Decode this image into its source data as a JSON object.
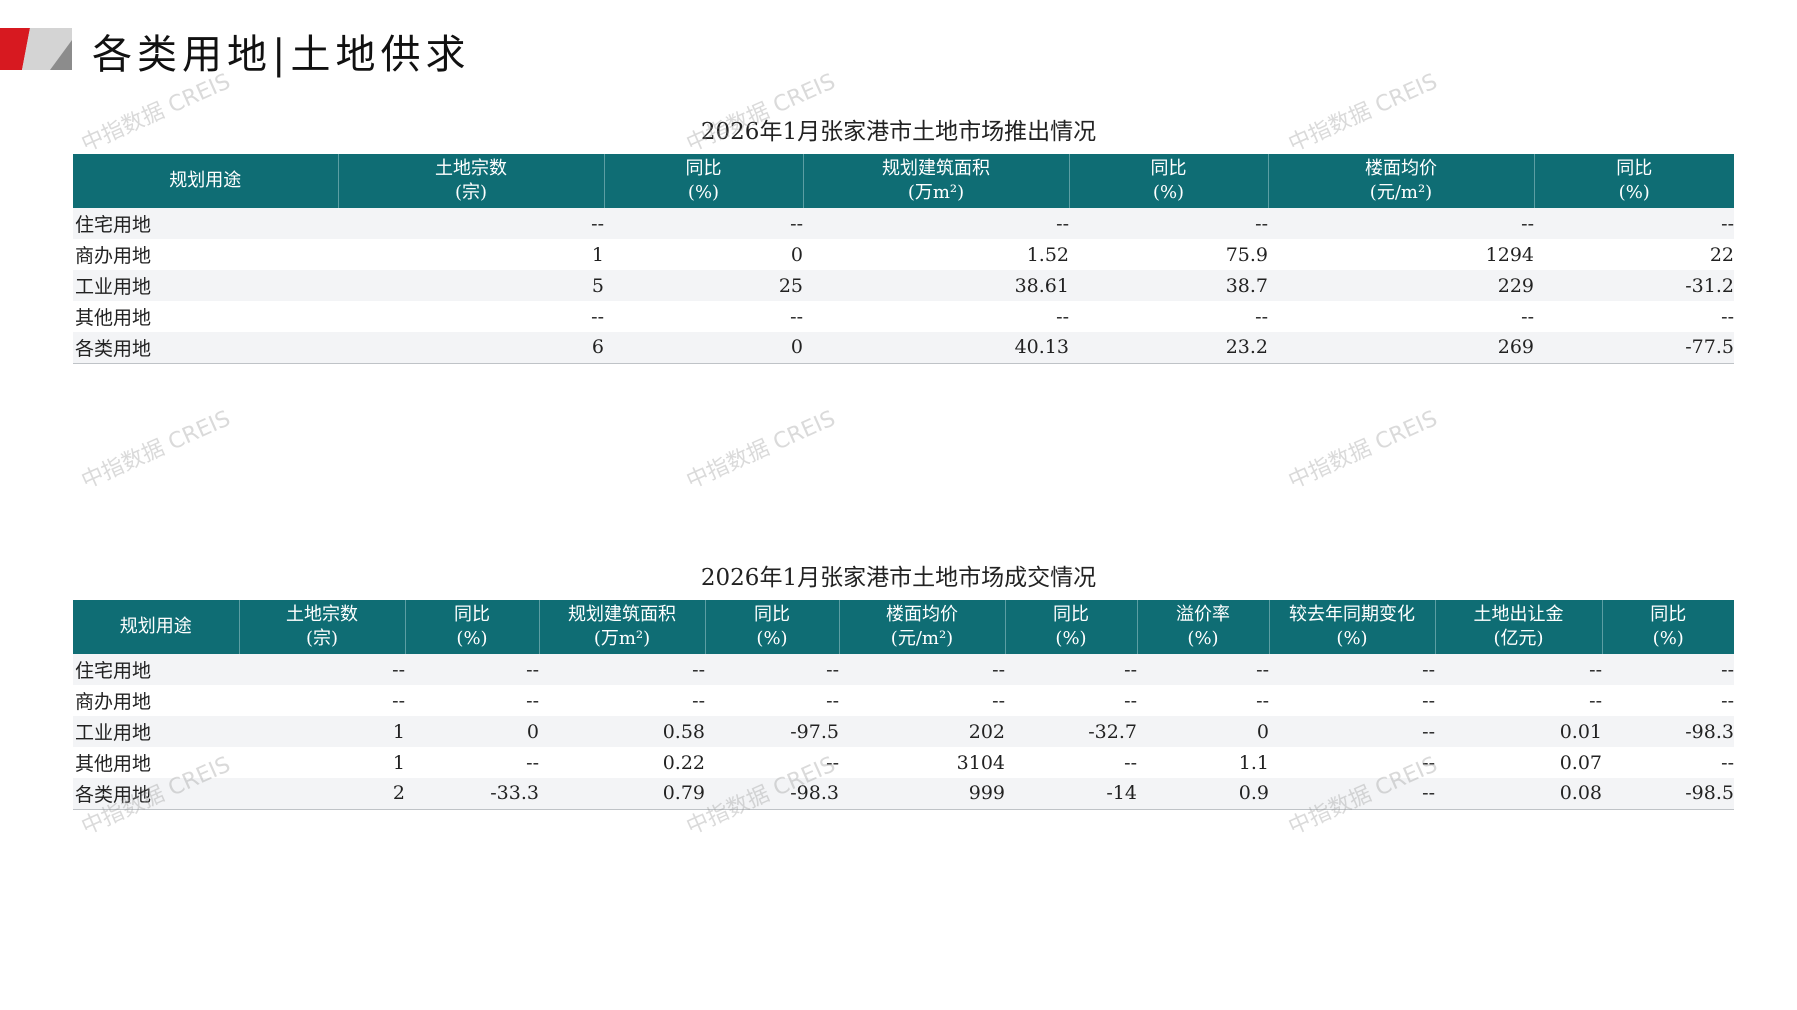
{
  "page_title": "各类用地|土地供求",
  "watermark": "中指数据 CREIS",
  "colors": {
    "header_bg": "#0f6d74",
    "accent_red": "#d71920"
  },
  "supply": {
    "title": "2026年1月张家港市土地市场推出情况",
    "headers": [
      [
        "规划用途",
        ""
      ],
      [
        "土地宗数",
        "(宗)"
      ],
      [
        "同比",
        "(%)"
      ],
      [
        "规划建筑面积",
        "(万m²)"
      ],
      [
        "同比",
        "(%)"
      ],
      [
        "楼面均价",
        "(元/m²)"
      ],
      [
        "同比",
        "(%)"
      ]
    ],
    "rows": [
      [
        "住宅用地",
        "--",
        "--",
        "--",
        "--",
        "--",
        "--"
      ],
      [
        "商办用地",
        "1",
        "0",
        "1.52",
        "75.9",
        "1294",
        "22"
      ],
      [
        "工业用地",
        "5",
        "25",
        "38.61",
        "38.7",
        "229",
        "-31.2"
      ],
      [
        "其他用地",
        "--",
        "--",
        "--",
        "--",
        "--",
        "--"
      ],
      [
        "各类用地",
        "6",
        "0",
        "40.13",
        "23.2",
        "269",
        "-77.5"
      ]
    ]
  },
  "deal": {
    "title": "2026年1月张家港市土地市场成交情况",
    "headers": [
      [
        "规划用途",
        ""
      ],
      [
        "土地宗数",
        "(宗)"
      ],
      [
        "同比",
        "(%)"
      ],
      [
        "规划建筑面积",
        "(万m²)"
      ],
      [
        "同比",
        "(%)"
      ],
      [
        "楼面均价",
        "(元/m²)"
      ],
      [
        "同比",
        "(%)"
      ],
      [
        "溢价率",
        "(%)"
      ],
      [
        "较去年同期变化",
        "(%)"
      ],
      [
        "土地出让金",
        "(亿元)"
      ],
      [
        "同比",
        "(%)"
      ]
    ],
    "rows": [
      [
        "住宅用地",
        "--",
        "--",
        "--",
        "--",
        "--",
        "--",
        "--",
        "--",
        "--",
        "--"
      ],
      [
        "商办用地",
        "--",
        "--",
        "--",
        "--",
        "--",
        "--",
        "--",
        "--",
        "--",
        "--"
      ],
      [
        "工业用地",
        "1",
        "0",
        "0.58",
        "-97.5",
        "202",
        "-32.7",
        "0",
        "--",
        "0.01",
        "-98.3"
      ],
      [
        "其他用地",
        "1",
        "--",
        "0.22",
        "--",
        "3104",
        "--",
        "1.1",
        "--",
        "0.07",
        "--"
      ],
      [
        "各类用地",
        "2",
        "-33.3",
        "0.79",
        "-98.3",
        "999",
        "-14",
        "0.9",
        "--",
        "0.08",
        "-98.5"
      ]
    ]
  }
}
